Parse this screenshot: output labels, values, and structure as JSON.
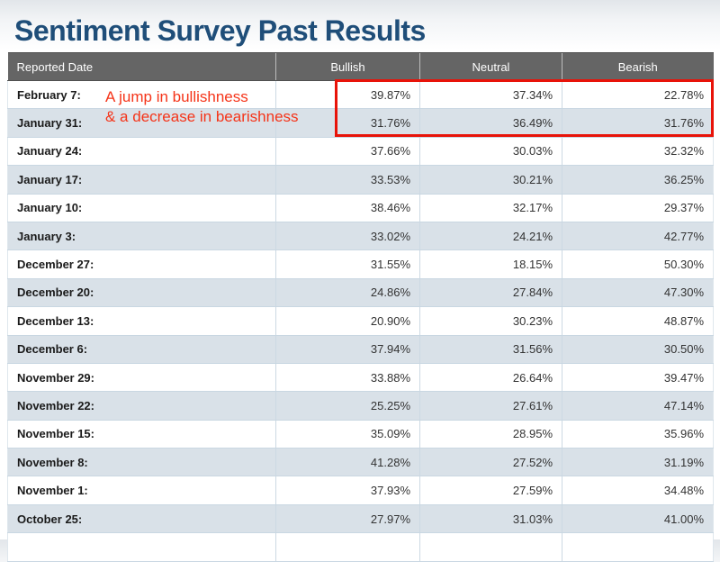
{
  "page": {
    "title": "Sentiment Survey Past Results"
  },
  "annotation": {
    "line1": "A jump in bullishness",
    "line2": "& a decrease in bearishness"
  },
  "colors": {
    "title_blue": "#1f4e79",
    "header_bg": "#656565",
    "row_alt_bg": "#d9e1e8",
    "highlight_box_red": "#e81309",
    "annotation_red": "#f53419"
  },
  "table": {
    "columns": [
      "Reported Date",
      "Bullish",
      "Neutral",
      "Bearish"
    ],
    "rows": [
      {
        "date": "February 7:",
        "bullish": "39.87%",
        "neutral": "37.34%",
        "bearish": "22.78%"
      },
      {
        "date": "January 31:",
        "bullish": "31.76%",
        "neutral": "36.49%",
        "bearish": "31.76%"
      },
      {
        "date": "January 24:",
        "bullish": "37.66%",
        "neutral": "30.03%",
        "bearish": "32.32%"
      },
      {
        "date": "January 17:",
        "bullish": "33.53%",
        "neutral": "30.21%",
        "bearish": "36.25%"
      },
      {
        "date": "January 10:",
        "bullish": "38.46%",
        "neutral": "32.17%",
        "bearish": "29.37%"
      },
      {
        "date": "January 3:",
        "bullish": "33.02%",
        "neutral": "24.21%",
        "bearish": "42.77%"
      },
      {
        "date": "December 27:",
        "bullish": "31.55%",
        "neutral": "18.15%",
        "bearish": "50.30%"
      },
      {
        "date": "December 20:",
        "bullish": "24.86%",
        "neutral": "27.84%",
        "bearish": "47.30%"
      },
      {
        "date": "December 13:",
        "bullish": "20.90%",
        "neutral": "30.23%",
        "bearish": "48.87%"
      },
      {
        "date": "December 6:",
        "bullish": "37.94%",
        "neutral": "31.56%",
        "bearish": "30.50%"
      },
      {
        "date": "November 29:",
        "bullish": "33.88%",
        "neutral": "26.64%",
        "bearish": "39.47%"
      },
      {
        "date": "November 22:",
        "bullish": "25.25%",
        "neutral": "27.61%",
        "bearish": "47.14%"
      },
      {
        "date": "November 15:",
        "bullish": "35.09%",
        "neutral": "28.95%",
        "bearish": "35.96%"
      },
      {
        "date": "November 8:",
        "bullish": "41.28%",
        "neutral": "27.52%",
        "bearish": "31.19%"
      },
      {
        "date": "November 1:",
        "bullish": "37.93%",
        "neutral": "27.59%",
        "bearish": "34.48%"
      },
      {
        "date": "October 25:",
        "bullish": "27.97%",
        "neutral": "31.03%",
        "bearish": "41.00%"
      }
    ]
  },
  "chart_data": {
    "type": "table",
    "title": "Sentiment Survey Past Results",
    "columns": [
      "Reported Date",
      "Bullish",
      "Neutral",
      "Bearish"
    ],
    "categories": [
      "February 7",
      "January 31",
      "January 24",
      "January 17",
      "January 10",
      "January 3",
      "December 27",
      "December 20",
      "December 13",
      "December 6",
      "November 29",
      "November 22",
      "November 15",
      "November 8",
      "November 1",
      "October 25"
    ],
    "series": [
      {
        "name": "Bullish",
        "values": [
          39.87,
          31.76,
          37.66,
          33.53,
          38.46,
          33.02,
          31.55,
          24.86,
          20.9,
          37.94,
          33.88,
          25.25,
          35.09,
          41.28,
          37.93,
          27.97
        ]
      },
      {
        "name": "Neutral",
        "values": [
          37.34,
          36.49,
          30.03,
          30.21,
          32.17,
          24.21,
          18.15,
          27.84,
          30.23,
          31.56,
          26.64,
          27.61,
          28.95,
          27.52,
          27.59,
          31.03
        ]
      },
      {
        "name": "Bearish",
        "values": [
          22.78,
          31.76,
          32.32,
          36.25,
          29.37,
          42.77,
          50.3,
          47.3,
          48.87,
          30.5,
          39.47,
          47.14,
          35.96,
          31.19,
          34.48,
          41.0
        ]
      }
    ],
    "annotations": [
      "A jump in bullishness & a decrease in bearishness (highlighted: February 7 and January 31 rows)"
    ],
    "units": "%"
  }
}
